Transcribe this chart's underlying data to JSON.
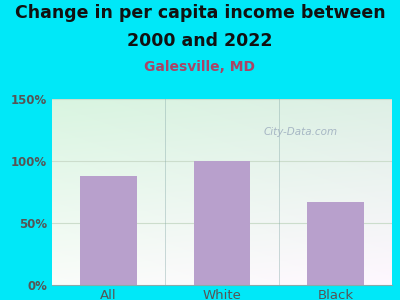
{
  "title_line1": "Change in per capita income between",
  "title_line2": "2000 and 2022",
  "subtitle": "Galesville, MD",
  "categories": [
    "All",
    "White",
    "Black"
  ],
  "values": [
    88,
    100,
    67
  ],
  "bar_color": "#b8a0cc",
  "title_fontsize": 12.5,
  "subtitle_fontsize": 10,
  "subtitle_color": "#aa4466",
  "title_color": "#111111",
  "outer_bg": "#00e8f8",
  "ylim": [
    0,
    150
  ],
  "yticks": [
    0,
    50,
    100,
    150
  ],
  "ytick_labels": [
    "0%",
    "50%",
    "100%",
    "150%"
  ],
  "watermark": "City-Data.com",
  "watermark_color": "#a0b0c0",
  "grid_color": "#ccddcc",
  "tick_color": "#555555",
  "bar_width": 0.5,
  "separator_color": "#88aaaa"
}
